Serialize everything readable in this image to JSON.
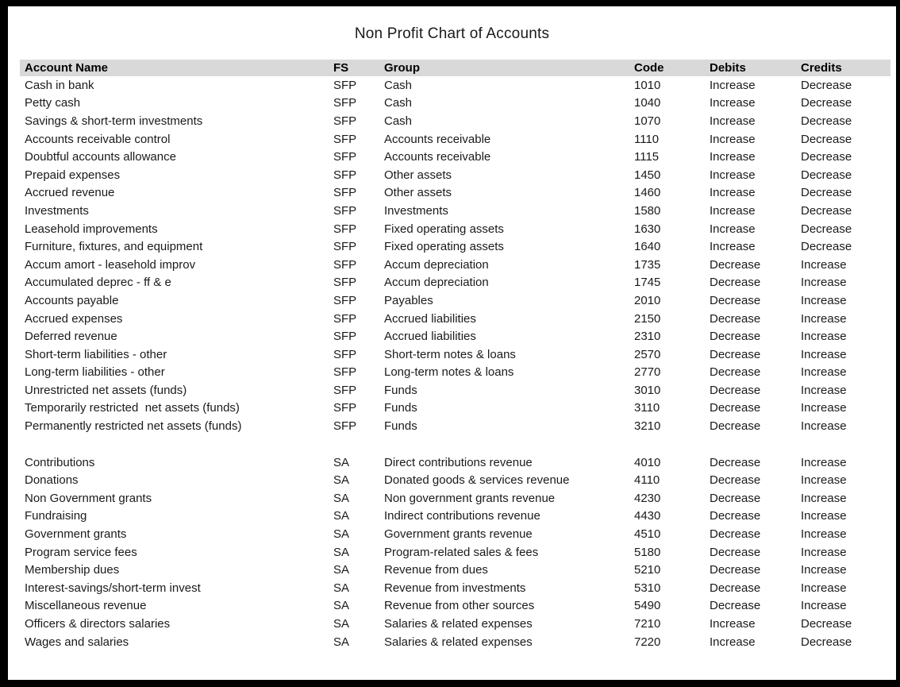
{
  "page": {
    "title": "Non Profit Chart of Accounts"
  },
  "table": {
    "columns": [
      "Account Name",
      "FS",
      "Group",
      "Code",
      "Debits",
      "Credits"
    ],
    "header_bg": "#d9d9d9",
    "sections": [
      {
        "name": "statement-of-financial-position",
        "rows": [
          {
            "account": "Cash in bank",
            "fs": "SFP",
            "group": "Cash",
            "code": "1010",
            "debits": "Increase",
            "credits": "Decrease"
          },
          {
            "account": "Petty cash",
            "fs": "SFP",
            "group": "Cash",
            "code": "1040",
            "debits": "Increase",
            "credits": "Decrease"
          },
          {
            "account": "Savings & short-term investments",
            "fs": "SFP",
            "group": "Cash",
            "code": "1070",
            "debits": "Increase",
            "credits": "Decrease"
          },
          {
            "account": "Accounts receivable control",
            "fs": "SFP",
            "group": "Accounts receivable",
            "code": "1110",
            "debits": "Increase",
            "credits": "Decrease"
          },
          {
            "account": "Doubtful accounts allowance",
            "fs": "SFP",
            "group": "Accounts receivable",
            "code": "1115",
            "debits": "Increase",
            "credits": "Decrease"
          },
          {
            "account": "Prepaid expenses",
            "fs": "SFP",
            "group": "Other assets",
            "code": "1450",
            "debits": "Increase",
            "credits": "Decrease"
          },
          {
            "account": "Accrued revenue",
            "fs": "SFP",
            "group": "Other assets",
            "code": "1460",
            "debits": "Increase",
            "credits": "Decrease"
          },
          {
            "account": "Investments",
            "fs": "SFP",
            "group": "Investments",
            "code": "1580",
            "debits": "Increase",
            "credits": "Decrease"
          },
          {
            "account": "Leasehold improvements",
            "fs": "SFP",
            "group": "Fixed operating assets",
            "code": "1630",
            "debits": "Increase",
            "credits": "Decrease"
          },
          {
            "account": "Furniture, fixtures, and equipment",
            "fs": "SFP",
            "group": "Fixed operating assets",
            "code": "1640",
            "debits": "Increase",
            "credits": "Decrease"
          },
          {
            "account": "Accum amort - leasehold improv",
            "fs": "SFP",
            "group": "Accum depreciation",
            "code": "1735",
            "debits": "Decrease",
            "credits": "Increase"
          },
          {
            "account": "Accumulated deprec - ff & e",
            "fs": "SFP",
            "group": "Accum depreciation",
            "code": "1745",
            "debits": "Decrease",
            "credits": "Increase"
          },
          {
            "account": "Accounts payable",
            "fs": "SFP",
            "group": "Payables",
            "code": "2010",
            "debits": "Decrease",
            "credits": "Increase"
          },
          {
            "account": "Accrued expenses",
            "fs": "SFP",
            "group": "Accrued liabilities",
            "code": "2150",
            "debits": "Decrease",
            "credits": "Increase"
          },
          {
            "account": "Deferred revenue",
            "fs": "SFP",
            "group": "Accrued liabilities",
            "code": "2310",
            "debits": "Decrease",
            "credits": "Increase"
          },
          {
            "account": "Short-term liabilities - other",
            "fs": "SFP",
            "group": "Short-term notes & loans",
            "code": "2570",
            "debits": "Decrease",
            "credits": "Increase"
          },
          {
            "account": "Long-term liabilities - other",
            "fs": "SFP",
            "group": "Long-term notes & loans",
            "code": "2770",
            "debits": "Decrease",
            "credits": "Increase"
          },
          {
            "account": "Unrestricted net assets (funds)",
            "fs": "SFP",
            "group": "Funds",
            "code": "3010",
            "debits": "Decrease",
            "credits": "Increase"
          },
          {
            "account": "Temporarily restricted  net assets (funds)",
            "fs": "SFP",
            "group": "Funds",
            "code": "3110",
            "debits": "Decrease",
            "credits": "Increase"
          },
          {
            "account": "Permanently restricted net assets (funds)",
            "fs": "SFP",
            "group": "Funds",
            "code": "3210",
            "debits": "Decrease",
            "credits": "Increase"
          }
        ]
      },
      {
        "name": "statement-of-activities",
        "rows": [
          {
            "account": "Contributions",
            "fs": "SA",
            "group": "Direct contributions revenue",
            "code": "4010",
            "debits": "Decrease",
            "credits": "Increase"
          },
          {
            "account": "Donations",
            "fs": "SA",
            "group": "Donated goods & services revenue",
            "code": "4110",
            "debits": "Decrease",
            "credits": "Increase"
          },
          {
            "account": "Non Government grants",
            "fs": "SA",
            "group": "Non government grants revenue",
            "code": "4230",
            "debits": "Decrease",
            "credits": "Increase"
          },
          {
            "account": "Fundraising",
            "fs": "SA",
            "group": "Indirect contributions revenue",
            "code": "4430",
            "debits": "Decrease",
            "credits": "Increase"
          },
          {
            "account": "Government grants",
            "fs": "SA",
            "group": "Government grants revenue",
            "code": "4510",
            "debits": "Decrease",
            "credits": "Increase"
          },
          {
            "account": "Program service fees",
            "fs": "SA",
            "group": "Program-related sales & fees",
            "code": "5180",
            "debits": "Decrease",
            "credits": "Increase"
          },
          {
            "account": "Membership dues",
            "fs": "SA",
            "group": "Revenue from dues",
            "code": "5210",
            "debits": "Decrease",
            "credits": "Increase"
          },
          {
            "account": "Interest-savings/short-term invest",
            "fs": "SA",
            "group": "Revenue from investments",
            "code": "5310",
            "debits": "Decrease",
            "credits": "Increase"
          },
          {
            "account": "Miscellaneous revenue",
            "fs": "SA",
            "group": "Revenue from other sources",
            "code": "5490",
            "debits": "Decrease",
            "credits": "Increase"
          },
          {
            "account": "Officers & directors salaries",
            "fs": "SA",
            "group": "Salaries & related expenses",
            "code": "7210",
            "debits": "Increase",
            "credits": "Decrease"
          },
          {
            "account": "Wages and salaries",
            "fs": "SA",
            "group": "Salaries & related expenses",
            "code": "7220",
            "debits": "Increase",
            "credits": "Decrease"
          }
        ]
      }
    ]
  }
}
